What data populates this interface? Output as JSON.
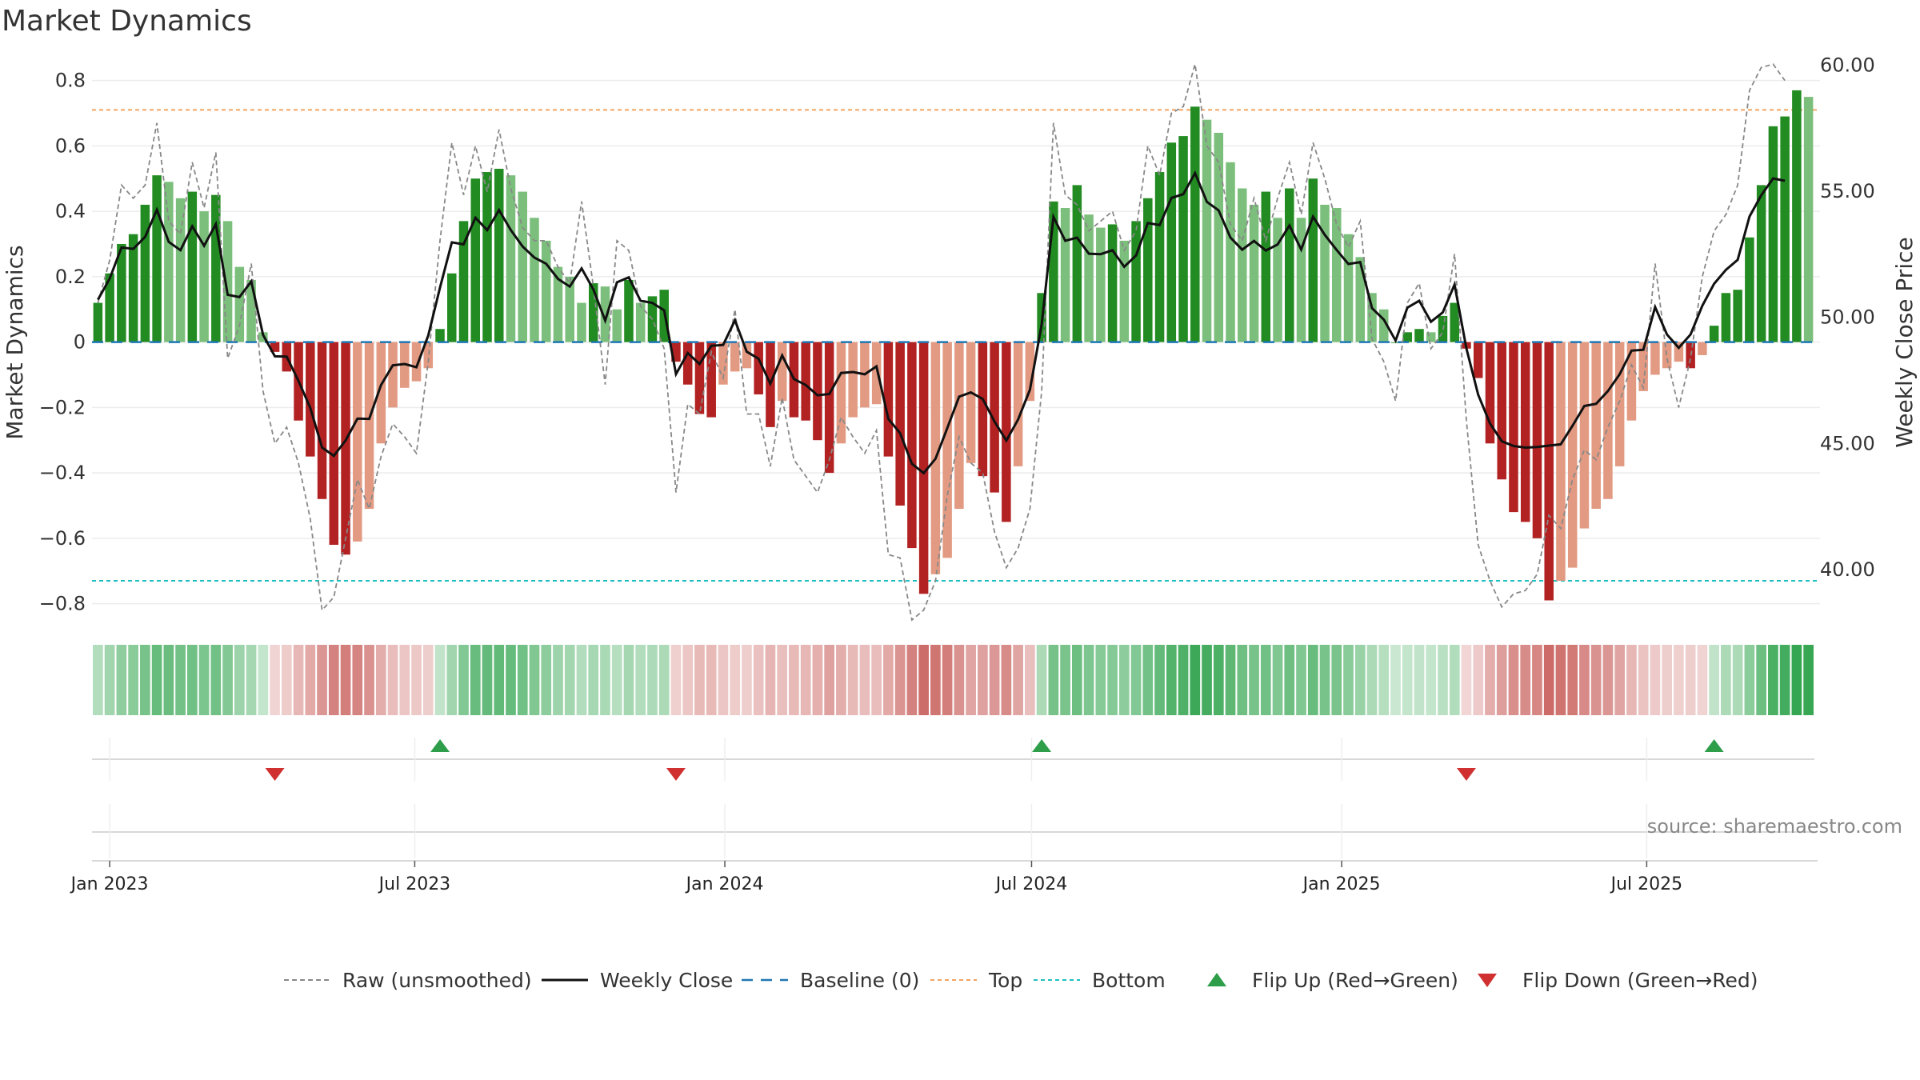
{
  "title": "Market Dynamics",
  "source_note": "source: sharemaestro.com",
  "colors": {
    "strong_green": "#228b22",
    "light_green": "#7cbf7c",
    "strong_red": "#b22222",
    "light_red": "#e29a82",
    "raw": "#888888",
    "close": "#111111",
    "baseline": "#1f77b4",
    "top": "#f4a460",
    "bottom": "#20c0c0",
    "flip_up": "#2e9e4a",
    "flip_down": "#d03030"
  },
  "legend": [
    {
      "key": "raw",
      "label": "Raw (unsmoothed)",
      "icon": "dashed-gray-line"
    },
    {
      "key": "close",
      "label": "Weekly Close",
      "icon": "solid-black-line"
    },
    {
      "key": "baseline",
      "label": "Baseline (0)",
      "icon": "dashed-blue-line"
    },
    {
      "key": "top",
      "label": "Top",
      "icon": "dotted-orange-line"
    },
    {
      "key": "bottom",
      "label": "Bottom",
      "icon": "dotted-cyan-line"
    },
    {
      "key": "flip_up",
      "label": "Flip Up (Red→Green)",
      "icon": "triangle-up-icon"
    },
    {
      "key": "flip_down",
      "label": "Flip Down (Green→Red)",
      "icon": "triangle-down-icon"
    }
  ],
  "chart_data": {
    "type": "bar",
    "title": "Market Dynamics",
    "ylabel": "Market Dynamics",
    "y2label": "Weekly Close Price",
    "ylim": [
      -0.85,
      0.87
    ],
    "y2lim": [
      38.0,
      60.3
    ],
    "yticks": [
      -0.8,
      -0.6,
      -0.4,
      -0.2,
      0,
      0.2,
      0.4,
      0.6,
      0.8
    ],
    "ytick_labels": [
      "−0.8",
      "−0.6",
      "−0.4",
      "−0.2",
      "0",
      "0.2",
      "0.4",
      "0.6",
      "0.8"
    ],
    "y2ticks": [
      40,
      45,
      50,
      55,
      60
    ],
    "y2tick_labels": [
      "40.00",
      "45.00",
      "50.00",
      "55.00",
      "60.00"
    ],
    "xtick_labels": [
      "Jan 2023",
      "Jul 2023",
      "Jan 2024",
      "Jul 2024",
      "Jan 2025",
      "Jul 2025"
    ],
    "start_date": "2022-12-25",
    "baseline": 0,
    "top_threshold": 0.71,
    "bottom_threshold": -0.73,
    "values": [
      0.12,
      0.21,
      0.3,
      0.33,
      0.42,
      0.51,
      0.49,
      0.44,
      0.46,
      0.4,
      0.45,
      0.37,
      0.23,
      0.19,
      0.03,
      -0.03,
      -0.09,
      -0.24,
      -0.35,
      -0.48,
      -0.62,
      -0.65,
      -0.61,
      -0.51,
      -0.31,
      -0.2,
      -0.14,
      -0.12,
      -0.08,
      0.04,
      0.21,
      0.37,
      0.5,
      0.52,
      0.53,
      0.51,
      0.46,
      0.38,
      0.31,
      0.23,
      0.2,
      0.12,
      0.18,
      0.17,
      0.1,
      0.19,
      0.12,
      0.14,
      0.16,
      -0.06,
      -0.13,
      -0.22,
      -0.23,
      -0.13,
      -0.09,
      -0.08,
      -0.16,
      -0.26,
      -0.18,
      -0.23,
      -0.24,
      -0.3,
      -0.4,
      -0.31,
      -0.23,
      -0.2,
      -0.19,
      -0.35,
      -0.5,
      -0.63,
      -0.77,
      -0.71,
      -0.66,
      -0.51,
      -0.37,
      -0.41,
      -0.46,
      -0.55,
      -0.38,
      -0.18,
      0.15,
      0.43,
      0.41,
      0.48,
      0.39,
      0.35,
      0.36,
      0.31,
      0.37,
      0.44,
      0.52,
      0.61,
      0.63,
      0.72,
      0.68,
      0.64,
      0.55,
      0.47,
      0.42,
      0.46,
      0.38,
      0.47,
      0.38,
      0.5,
      0.42,
      0.41,
      0.33,
      0.26,
      0.15,
      0.1,
      0.0,
      0.03,
      0.04,
      0.03,
      0.08,
      0.12,
      -0.02,
      -0.11,
      -0.31,
      -0.42,
      -0.52,
      -0.55,
      -0.6,
      -0.79,
      -0.73,
      -0.69,
      -0.57,
      -0.51,
      -0.48,
      -0.38,
      -0.24,
      -0.15,
      -0.1,
      -0.08,
      -0.06,
      -0.08,
      -0.04,
      0.05,
      0.15,
      0.16,
      0.32,
      0.48,
      0.66,
      0.69,
      0.77,
      0.75
    ],
    "raw": [
      0.12,
      0.25,
      0.48,
      0.44,
      0.48,
      0.67,
      0.37,
      0.33,
      0.55,
      0.41,
      0.58,
      -0.05,
      0.05,
      0.24,
      -0.15,
      -0.31,
      -0.26,
      -0.37,
      -0.54,
      -0.82,
      -0.78,
      -0.6,
      -0.42,
      -0.51,
      -0.35,
      -0.25,
      -0.29,
      -0.34,
      -0.06,
      0.31,
      0.61,
      0.45,
      0.6,
      0.46,
      0.65,
      0.47,
      0.35,
      0.31,
      0.31,
      0.23,
      0.18,
      0.43,
      0.17,
      -0.13,
      0.31,
      0.28,
      0.11,
      0.07,
      -0.02,
      -0.46,
      -0.19,
      -0.22,
      -0.03,
      -0.11,
      0.1,
      -0.22,
      -0.22,
      -0.38,
      -0.17,
      -0.36,
      -0.41,
      -0.46,
      -0.36,
      -0.23,
      -0.29,
      -0.34,
      -0.27,
      -0.65,
      -0.66,
      -0.85,
      -0.82,
      -0.73,
      -0.47,
      -0.29,
      -0.37,
      -0.4,
      -0.58,
      -0.69,
      -0.63,
      -0.51,
      -0.15,
      0.67,
      0.45,
      0.42,
      0.34,
      0.37,
      0.4,
      0.28,
      0.34,
      0.6,
      0.51,
      0.7,
      0.72,
      0.85,
      0.6,
      0.55,
      0.36,
      0.31,
      0.44,
      0.31,
      0.44,
      0.55,
      0.39,
      0.61,
      0.5,
      0.36,
      0.29,
      0.37,
      0.01,
      -0.06,
      -0.18,
      0.12,
      0.18,
      -0.02,
      0.03,
      0.27,
      -0.24,
      -0.62,
      -0.73,
      -0.81,
      -0.77,
      -0.76,
      -0.71,
      -0.53,
      -0.57,
      -0.42,
      -0.33,
      -0.36,
      -0.26,
      -0.18,
      -0.07,
      -0.14,
      0.24,
      -0.05,
      -0.2,
      -0.05,
      0.2,
      0.34,
      0.39,
      0.48,
      0.77,
      0.84,
      0.85,
      0.8
    ]
  }
}
